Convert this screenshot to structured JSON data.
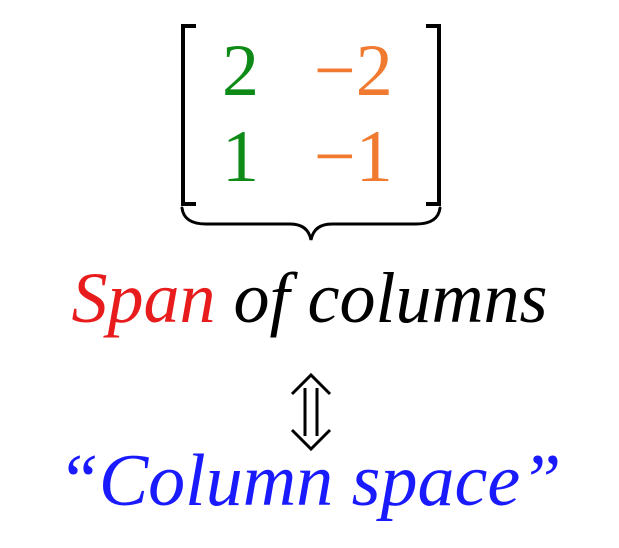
{
  "matrix": {
    "row1": {
      "col1": "2",
      "col2": "−2"
    },
    "row2": {
      "col1": "1",
      "col2": "−1"
    }
  },
  "caption": {
    "span_word": "Span",
    "rest": "of columns"
  },
  "equivalence_symbol": "⇕",
  "result_label": "“Column space”",
  "colors": {
    "column1": "#0e8a17",
    "column2": "#f07a30",
    "span_word": "#e81c1c",
    "caption_text": "#000000",
    "result_label": "#1a1aff"
  }
}
